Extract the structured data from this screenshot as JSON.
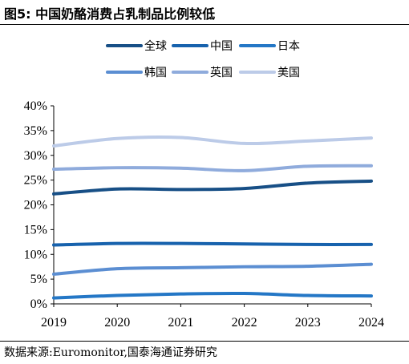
{
  "header": {
    "title": "图5:  中国奶酪消费占乳制品比例较低"
  },
  "footer": {
    "source": "数据来源:Euromonitor,国泰海通证券研究"
  },
  "chart_data": {
    "type": "line",
    "title": "图5:  中国奶酪消费占乳制品比例较低",
    "xlabel": "",
    "ylabel": "",
    "x": [
      2019,
      2020,
      2021,
      2022,
      2023,
      2024
    ],
    "x_tick_labels": [
      "2019",
      "2020",
      "2021",
      "2022",
      "2023",
      "2024"
    ],
    "ylim": [
      0,
      40
    ],
    "y_ticks": [
      0,
      5,
      10,
      15,
      20,
      25,
      30,
      35,
      40
    ],
    "y_tick_labels": [
      "0%",
      "5%",
      "10%",
      "15%",
      "20%",
      "25%",
      "30%",
      "35%",
      "40%"
    ],
    "grid": false,
    "legend_position": "top",
    "series": [
      {
        "name": "全球",
        "color": "#174f86",
        "values": [
          22.2,
          23.2,
          23.1,
          23.3,
          24.4,
          24.8
        ]
      },
      {
        "name": "中国",
        "color": "#1762ad",
        "values": [
          11.9,
          12.2,
          12.2,
          12.1,
          12.0,
          12.0
        ]
      },
      {
        "name": "日本",
        "color": "#2477c6",
        "values": [
          1.2,
          1.7,
          2.0,
          2.1,
          1.7,
          1.6
        ]
      },
      {
        "name": "韩国",
        "color": "#5b8ed2",
        "values": [
          6.0,
          7.1,
          7.3,
          7.5,
          7.6,
          8.0
        ]
      },
      {
        "name": "英国",
        "color": "#8fabdc",
        "values": [
          27.2,
          27.5,
          27.4,
          26.9,
          27.8,
          27.9
        ]
      },
      {
        "name": "美国",
        "color": "#bccbe8",
        "values": [
          31.9,
          33.4,
          33.6,
          32.4,
          32.9,
          33.5
        ]
      }
    ]
  }
}
